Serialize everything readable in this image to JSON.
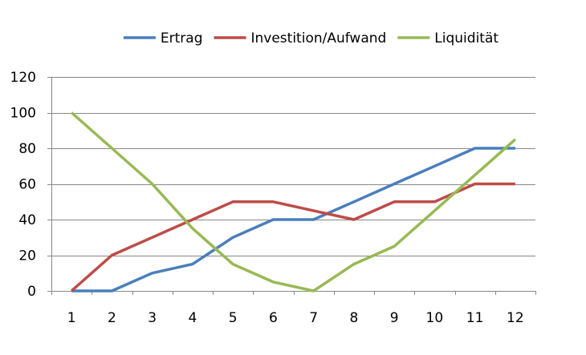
{
  "chart_data": {
    "type": "line",
    "title": "",
    "xlabel": "",
    "ylabel": "",
    "categories": [
      "1",
      "2",
      "3",
      "4",
      "5",
      "6",
      "7",
      "8",
      "9",
      "10",
      "11",
      "12"
    ],
    "ylim": [
      0,
      120
    ],
    "yticks": [
      0,
      20,
      40,
      60,
      80,
      100,
      120
    ],
    "ytick_labels": [
      "0",
      "20",
      "40",
      "60",
      "80",
      "100",
      "120"
    ],
    "grid": true,
    "legend_position": "top",
    "series": [
      {
        "name": "Ertrag",
        "color": "#4a7ebb",
        "values": [
          0,
          0,
          10,
          15,
          30,
          40,
          40,
          50,
          60,
          70,
          80,
          80
        ]
      },
      {
        "name": "Investition/Aufwand",
        "color": "#be4b48",
        "values": [
          0,
          20,
          30,
          40,
          50,
          50,
          45,
          40,
          50,
          50,
          60,
          60
        ]
      },
      {
        "name": "Liquidität",
        "color": "#98b954",
        "values": [
          100,
          80,
          60,
          35,
          15,
          5,
          0,
          15,
          25,
          45,
          65,
          85
        ]
      }
    ]
  }
}
